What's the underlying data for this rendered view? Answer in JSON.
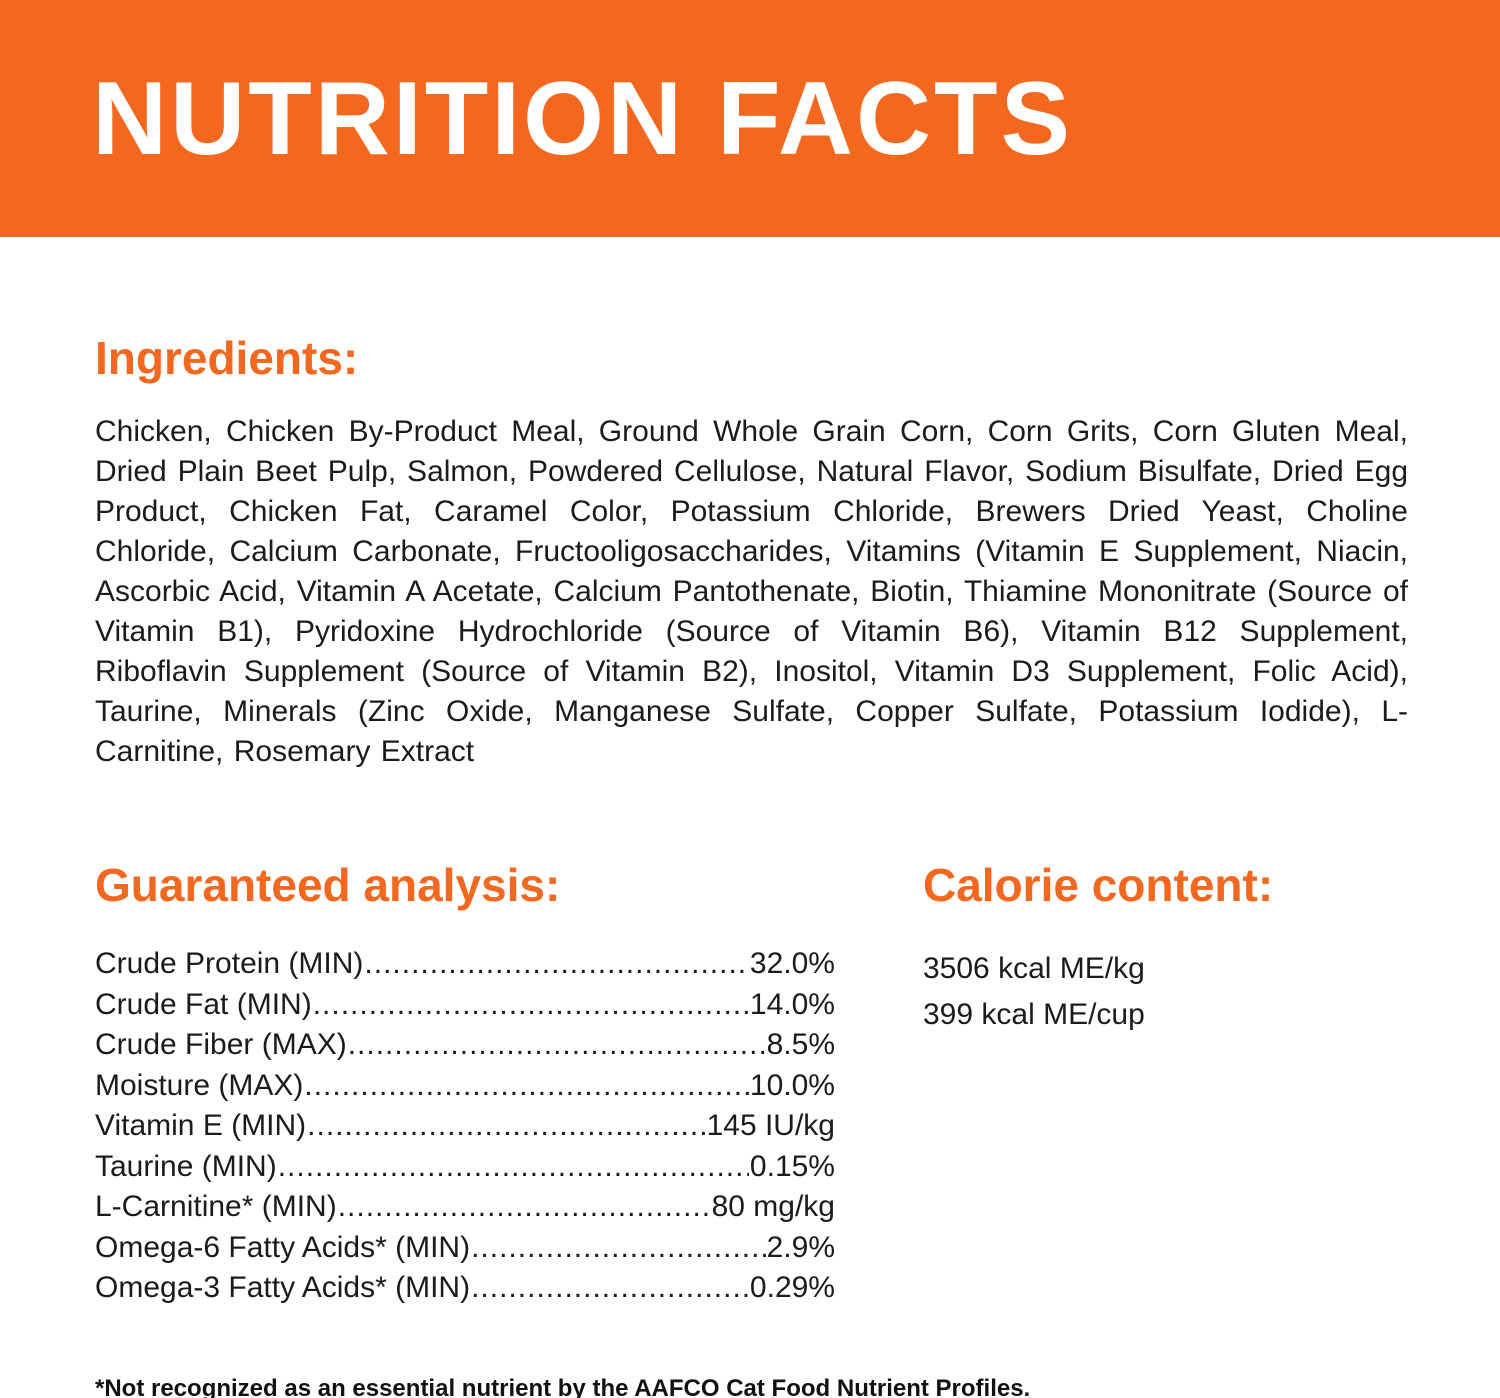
{
  "header": {
    "title": "NUTRITION FACTS"
  },
  "ingredients": {
    "heading": "Ingredients:",
    "text": "Chicken, Chicken By-Product Meal, Ground Whole Grain Corn, Corn Grits, Corn Gluten Meal, Dried Plain Beet Pulp, Salmon, Powdered Cellulose, Natural Flavor, Sodium Bisulfate, Dried Egg Product, Chicken Fat, Caramel Color, Potassium Chloride, Brewers Dried Yeast, Choline Chloride, Calcium Carbonate, Fructooligosaccharides, Vitamins (Vitamin E Supplement, Niacin, Ascorbic Acid, Vitamin A Acetate, Calcium Pantothenate, Biotin, Thiamine Mononitrate (Source of Vitamin B1), Pyridoxine Hydrochloride (Source of Vitamin B6), Vitamin B12 Supplement, Riboflavin Supplement (Source of Vitamin B2), Inositol, Vitamin D3 Supplement, Folic Acid), Taurine, Minerals (Zinc Oxide, Manganese Sulfate, Copper Sulfate, Potassium Iodide), L-Carnitine, Rosemary Extract"
  },
  "guaranteed_analysis": {
    "heading": "Guaranteed analysis:",
    "rows": [
      {
        "label": "Crude Protein (MIN)",
        "value": "32.0%"
      },
      {
        "label": "Crude Fat (MIN)",
        "value": "14.0%"
      },
      {
        "label": "Crude Fiber (MAX)",
        "value": "8.5%"
      },
      {
        "label": "Moisture (MAX)",
        "value": "10.0%"
      },
      {
        "label": "Vitamin E (MIN)",
        "value": "145 IU/kg"
      },
      {
        "label": "Taurine (MIN)",
        "value": "0.15%"
      },
      {
        "label": "L-Carnitine* (MIN)",
        "value": "80 mg/kg"
      },
      {
        "label": "Omega-6 Fatty Acids* (MIN)",
        "value": "2.9%"
      },
      {
        "label": "Omega-3 Fatty Acids* (MIN)",
        "value": "0.29%"
      }
    ]
  },
  "calorie_content": {
    "heading": "Calorie content:",
    "lines": [
      "3506 kcal ME/kg",
      "399 kcal ME/cup"
    ]
  },
  "footnote": "*Not recognized as an essential nutrient by the AAFCO Cat Food Nutrient Profiles.",
  "colors": {
    "accent": "#F4671E",
    "text": "#1b1b1b"
  }
}
